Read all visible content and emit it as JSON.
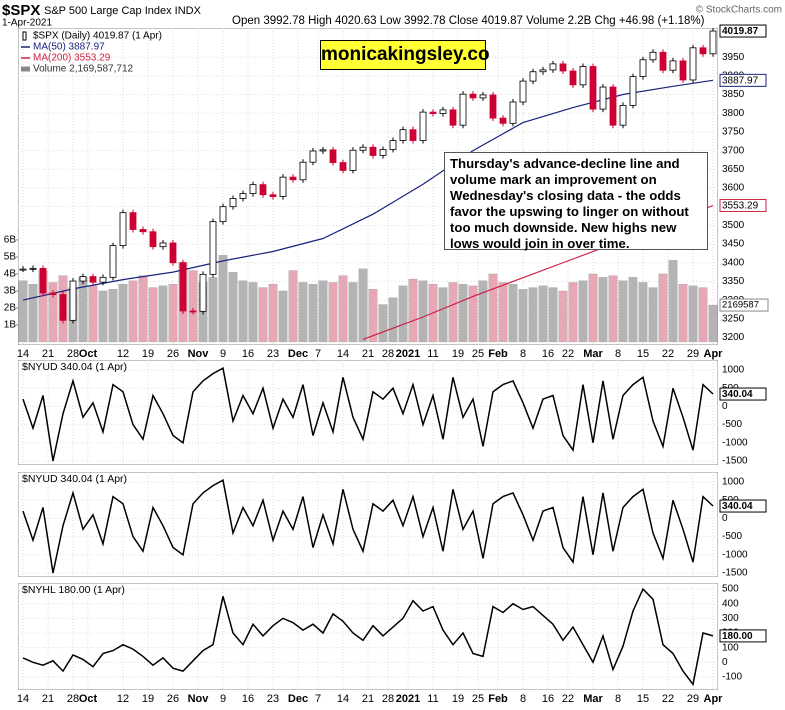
{
  "chart_data": [
    {
      "type": "candlestick",
      "title": "$SPX",
      "subtitle": "S&P 500 Large Cap Index INDX",
      "date": "1-Apr-2021",
      "quote": "Open 3992.78 High 4020.63 Low 3992.78 Close 4019.87 Volume 2.2B Chg +46.98 (+1.18%)",
      "credit": "© StockCharts.com",
      "logo": "monicakingsley.co",
      "annotation": "Thursday's advance-decline line and volume mark an improvement on Wednesday's closing data - the odds favor the upswing to linger on without too much downside. New highs new lows would join in over time.",
      "volume_tag": "2169587",
      "x": [
        0,
        2,
        4,
        6,
        8,
        10,
        12,
        14,
        16,
        18,
        20,
        22,
        24,
        26,
        28,
        30,
        32,
        34,
        36,
        38,
        40,
        42,
        44,
        46,
        48,
        50,
        52,
        54,
        56,
        58,
        60,
        62,
        64,
        66,
        68,
        70,
        72,
        74,
        76,
        78,
        80,
        82,
        84,
        86,
        88,
        90,
        92,
        94,
        96,
        98,
        100,
        102,
        104,
        106,
        108,
        110,
        112,
        114,
        116,
        118,
        120,
        122,
        124,
        126,
        128,
        130,
        132,
        134,
        136,
        138
      ],
      "xlim": [
        -1,
        139
      ],
      "xticks": [
        {
          "value": 0,
          "label": "14"
        },
        {
          "value": 5,
          "label": "21"
        },
        {
          "value": 10,
          "label": "28"
        },
        {
          "value": 13,
          "label": "Oct"
        },
        {
          "value": 20,
          "label": "12"
        },
        {
          "value": 25,
          "label": "19"
        },
        {
          "value": 30,
          "label": "26"
        },
        {
          "value": 35,
          "label": "Nov"
        },
        {
          "value": 40,
          "label": "9"
        },
        {
          "value": 45,
          "label": "16"
        },
        {
          "value": 50,
          "label": "23"
        },
        {
          "value": 55,
          "label": "Dec"
        },
        {
          "value": 59,
          "label": "7"
        },
        {
          "value": 64,
          "label": "14"
        },
        {
          "value": 69,
          "label": "21"
        },
        {
          "value": 73,
          "label": "28"
        },
        {
          "value": 77,
          "label": "2021"
        },
        {
          "value": 82,
          "label": "11"
        },
        {
          "value": 87,
          "label": "19"
        },
        {
          "value": 91,
          "label": "25"
        },
        {
          "value": 95,
          "label": "Feb"
        },
        {
          "value": 100,
          "label": "8"
        },
        {
          "value": 105,
          "label": "16"
        },
        {
          "value": 109,
          "label": "22"
        },
        {
          "value": 114,
          "label": "Mar"
        },
        {
          "value": 119,
          "label": "8"
        },
        {
          "value": 124,
          "label": "15"
        },
        {
          "value": 129,
          "label": "22"
        },
        {
          "value": 134,
          "label": "29"
        },
        {
          "value": 138,
          "label": "Apr"
        }
      ],
      "ylim": [
        3180,
        4028
      ],
      "yticks": [
        3200,
        3250,
        3300,
        3350,
        3400,
        3450,
        3500,
        3550,
        3600,
        3650,
        3700,
        3750,
        3800,
        3850,
        3900,
        3950
      ],
      "y2lim": [
        -0.18,
        18.47
      ],
      "y2ticks": [
        {
          "value": 1,
          "label": "1B"
        },
        {
          "value": 2,
          "label": "2B"
        },
        {
          "value": 3,
          "label": "3B"
        },
        {
          "value": 4,
          "label": "4B"
        },
        {
          "value": 5,
          "label": "5B"
        },
        {
          "value": 6,
          "label": "6B"
        }
      ],
      "grid": true,
      "series": [
        {
          "name": "$SPX (Daily) 4019.87 (1 Apr)",
          "color": "#cc0033",
          "values": [
            3383,
            3385,
            3319,
            3315,
            3246,
            3351,
            3363,
            3348,
            3361,
            3446,
            3534,
            3489,
            3483,
            3443,
            3453,
            3400,
            3271,
            3270,
            3369,
            3510,
            3550,
            3572,
            3585,
            3609,
            3582,
            3577,
            3629,
            3622,
            3669,
            3699,
            3702,
            3668,
            3647,
            3701,
            3709,
            3687,
            3703,
            3727,
            3756,
            3727,
            3803,
            3799,
            3809,
            3768,
            3851,
            3841,
            3849,
            3787,
            3773,
            3830,
            3886,
            3911,
            3916,
            3932,
            3913,
            3876,
            3925,
            3811,
            3870,
            3768,
            3821,
            3898,
            3943,
            3963,
            3915,
            3940,
            3889,
            3975,
            3959,
            4019.87
          ]
        },
        {
          "name": "MA(50) 3887.97",
          "color": "#1a237e",
          "x": [
            0,
            10,
            20,
            30,
            40,
            50,
            60,
            70,
            80,
            90,
            100,
            110,
            120,
            130,
            138
          ],
          "values": [
            3300,
            3330,
            3355,
            3375,
            3405,
            3430,
            3465,
            3530,
            3610,
            3700,
            3775,
            3815,
            3850,
            3872,
            3887.97
          ]
        },
        {
          "name": "MA(200) 3553.29",
          "color": "#cc2244",
          "x": [
            68,
            80,
            90,
            100,
            110,
            120,
            130,
            138
          ],
          "values": [
            3195,
            3255,
            3310,
            3360,
            3410,
            3460,
            3510,
            3553.29
          ]
        },
        {
          "name": "Volume 2,169,587,712",
          "color": "#b4b4b4",
          "down_color": "#e6a8b4",
          "axis": "y2",
          "values": [
            3.6,
            3.4,
            4.2,
            3.5,
            3.9,
            3.2,
            3.8,
            3.3,
            3.0,
            3.1,
            3.4,
            3.6,
            3.9,
            3.2,
            3.3,
            3.4,
            4.7,
            4.2,
            3.5,
            3.8,
            5.1,
            4.1,
            3.6,
            3.5,
            3.2,
            3.4,
            3.0,
            4.2,
            3.5,
            3.4,
            3.6,
            3.5,
            3.9,
            3.5,
            4.3,
            3.1,
            2.2,
            2.6,
            3.3,
            3.7,
            3.6,
            3.4,
            3.2,
            3.5,
            3.4,
            3.3,
            3.6,
            4.0,
            3.5,
            3.4,
            3.1,
            3.2,
            3.3,
            3.2,
            3.0,
            3.5,
            3.6,
            4.0,
            3.8,
            3.9,
            3.6,
            3.8,
            3.5,
            3.2,
            4.0,
            4.8,
            3.4,
            3.3,
            3.2,
            2.17
          ]
        }
      ]
    },
    {
      "type": "line",
      "title": "$NYUD 340.04 (1 Apr)",
      "color": "#000000",
      "x": [
        0,
        2,
        4,
        6,
        8,
        10,
        12,
        14,
        16,
        18,
        20,
        22,
        24,
        26,
        28,
        30,
        32,
        34,
        36,
        38,
        40,
        42,
        44,
        46,
        48,
        50,
        52,
        54,
        56,
        58,
        60,
        62,
        64,
        66,
        68,
        70,
        72,
        74,
        76,
        78,
        80,
        82,
        84,
        86,
        88,
        90,
        92,
        94,
        96,
        98,
        100,
        102,
        104,
        106,
        108,
        110,
        112,
        114,
        116,
        118,
        120,
        122,
        124,
        126,
        128,
        130,
        132,
        134,
        136,
        138
      ],
      "xlim": [
        -1,
        139
      ],
      "ylim": [
        -1610,
        1275
      ],
      "yticks": [
        -1500,
        -1000,
        -500,
        0,
        500,
        1000
      ],
      "grid": true,
      "values": [
        200,
        -600,
        300,
        -1500,
        -200,
        700,
        -300,
        100,
        -700,
        600,
        400,
        -500,
        -900,
        300,
        -200,
        -800,
        -1000,
        400,
        700,
        900,
        1050,
        -400,
        300,
        -200,
        500,
        -600,
        200,
        -300,
        600,
        -800,
        100,
        -700,
        800,
        -300,
        -900,
        400,
        200,
        500,
        -200,
        600,
        -500,
        300,
        -900,
        800,
        -300,
        200,
        -1100,
        400,
        600,
        700,
        100,
        -600,
        200,
        300,
        -800,
        -1200,
        600,
        -1000,
        700,
        -900,
        300,
        600,
        800,
        -400,
        -1100,
        500,
        -300,
        -1200,
        600,
        340.04
      ]
    },
    {
      "type": "line",
      "title": "$NYUD 340.04 (1 Apr)",
      "color": "#000000",
      "x": [
        0,
        2,
        4,
        6,
        8,
        10,
        12,
        14,
        16,
        18,
        20,
        22,
        24,
        26,
        28,
        30,
        32,
        34,
        36,
        38,
        40,
        42,
        44,
        46,
        48,
        50,
        52,
        54,
        56,
        58,
        60,
        62,
        64,
        66,
        68,
        70,
        72,
        74,
        76,
        78,
        80,
        82,
        84,
        86,
        88,
        90,
        92,
        94,
        96,
        98,
        100,
        102,
        104,
        106,
        108,
        110,
        112,
        114,
        116,
        118,
        120,
        122,
        124,
        126,
        128,
        130,
        132,
        134,
        136,
        138
      ],
      "xlim": [
        -1,
        139
      ],
      "ylim": [
        -1610,
        1275
      ],
      "yticks": [
        -1500,
        -1000,
        -500,
        0,
        500,
        1000
      ],
      "grid": true,
      "values": [
        200,
        -600,
        300,
        -1500,
        -200,
        700,
        -300,
        100,
        -700,
        600,
        400,
        -500,
        -900,
        300,
        -200,
        -800,
        -1000,
        400,
        700,
        900,
        1050,
        -400,
        300,
        -200,
        500,
        -600,
        200,
        -300,
        600,
        -800,
        100,
        -700,
        800,
        -300,
        -900,
        400,
        200,
        500,
        -200,
        600,
        -500,
        300,
        -900,
        800,
        -300,
        200,
        -1100,
        400,
        600,
        700,
        100,
        -600,
        200,
        300,
        -800,
        -1200,
        600,
        -1000,
        700,
        -900,
        300,
        600,
        800,
        -400,
        -1100,
        500,
        -300,
        -1200,
        600,
        340.04
      ]
    },
    {
      "type": "line",
      "title": "$NYHL 180.00 (1 Apr)",
      "color": "#000000",
      "last_label": "180.00",
      "x": [
        0,
        2,
        4,
        6,
        8,
        10,
        12,
        14,
        16,
        18,
        20,
        22,
        24,
        26,
        28,
        30,
        32,
        34,
        36,
        38,
        40,
        42,
        44,
        46,
        48,
        50,
        52,
        54,
        56,
        58,
        60,
        62,
        64,
        66,
        68,
        70,
        72,
        74,
        76,
        78,
        80,
        82,
        84,
        86,
        88,
        90,
        92,
        94,
        96,
        98,
        100,
        102,
        104,
        106,
        108,
        110,
        112,
        114,
        116,
        118,
        120,
        122,
        124,
        126,
        128,
        130,
        132,
        134,
        136,
        138
      ],
      "xlim": [
        -1,
        139
      ],
      "ylim": [
        -189,
        541
      ],
      "yticks": [
        -100,
        0,
        100,
        200,
        300,
        400,
        500
      ],
      "grid": true,
      "xticks": [
        {
          "value": 0,
          "label": "14"
        },
        {
          "value": 5,
          "label": "21"
        },
        {
          "value": 10,
          "label": "28"
        },
        {
          "value": 13,
          "label": "Oct"
        },
        {
          "value": 20,
          "label": "12"
        },
        {
          "value": 25,
          "label": "19"
        },
        {
          "value": 30,
          "label": "26"
        },
        {
          "value": 35,
          "label": "Nov"
        },
        {
          "value": 40,
          "label": "9"
        },
        {
          "value": 45,
          "label": "16"
        },
        {
          "value": 50,
          "label": "23"
        },
        {
          "value": 55,
          "label": "Dec"
        },
        {
          "value": 59,
          "label": "7"
        },
        {
          "value": 64,
          "label": "14"
        },
        {
          "value": 69,
          "label": "21"
        },
        {
          "value": 73,
          "label": "28"
        },
        {
          "value": 77,
          "label": "2021"
        },
        {
          "value": 82,
          "label": "11"
        },
        {
          "value": 87,
          "label": "19"
        },
        {
          "value": 91,
          "label": "25"
        },
        {
          "value": 95,
          "label": "Feb"
        },
        {
          "value": 100,
          "label": "8"
        },
        {
          "value": 105,
          "label": "16"
        },
        {
          "value": 109,
          "label": "22"
        },
        {
          "value": 114,
          "label": "Mar"
        },
        {
          "value": 119,
          "label": "8"
        },
        {
          "value": 124,
          "label": "15"
        },
        {
          "value": 129,
          "label": "22"
        },
        {
          "value": 134,
          "label": "29"
        },
        {
          "value": 138,
          "label": "Apr"
        }
      ],
      "values": [
        30,
        0,
        -20,
        10,
        -60,
        50,
        20,
        -30,
        60,
        80,
        120,
        90,
        40,
        -20,
        30,
        -40,
        -60,
        10,
        80,
        120,
        450,
        200,
        120,
        260,
        180,
        250,
        300,
        270,
        220,
        260,
        200,
        330,
        280,
        200,
        150,
        250,
        180,
        240,
        300,
        420,
        350,
        380,
        220,
        120,
        200,
        60,
        40,
        380,
        340,
        400,
        360,
        380,
        320,
        260,
        150,
        240,
        120,
        0,
        180,
        -50,
        110,
        350,
        500,
        430,
        120,
        60,
        -60,
        -150,
        200,
        180
      ]
    }
  ]
}
